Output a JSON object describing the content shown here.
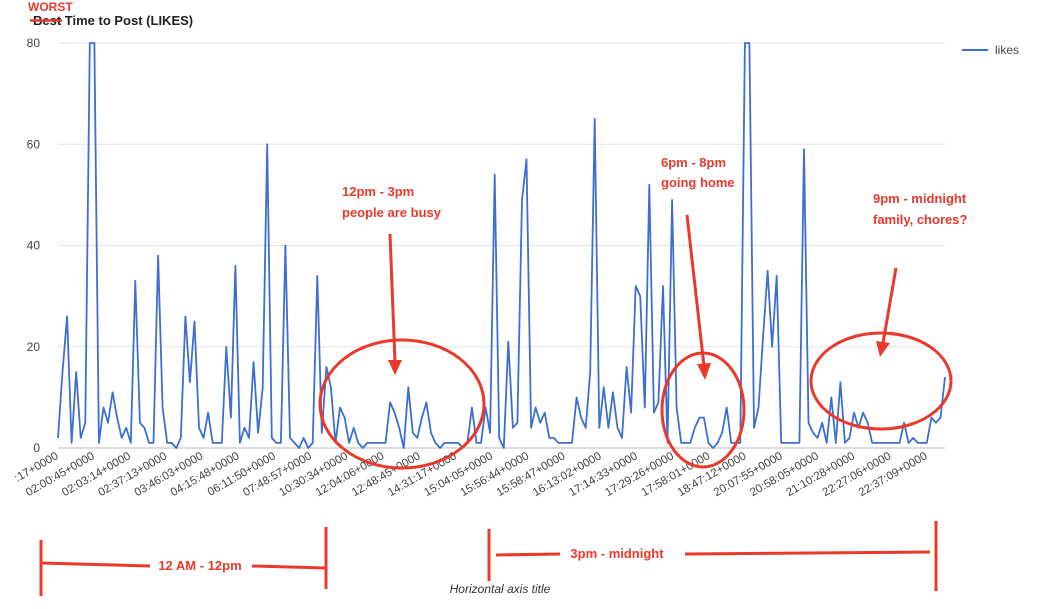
{
  "chart_data": {
    "type": "line",
    "title": "Best Time to Post (LIKES)",
    "xlabel": "Horizontal axis title",
    "ylabel": "",
    "ylim": [
      0,
      80
    ],
    "yticks": [
      0,
      20,
      40,
      60,
      80
    ],
    "grid": true,
    "legend": "right",
    "x_tick_labels": [
      ":17+0000",
      "02:00:45+0000",
      "02:03:14+0000",
      "02:37:13+0000",
      "03:46:03+0000",
      "04:15:48+0000",
      "06:11:50+0000",
      "07:48:57+0000",
      "10:30:34+0000",
      "12:04:06+0000",
      "12:48:45+0000",
      "14:31:17+0000",
      "15:04:05+0000",
      "15:56:44+0000",
      "15:58:47+0000",
      "16:13:02+0000",
      "17:14:33+0000",
      "17:29:26+0000",
      "17:58:01+0000",
      "18:47:12+0000",
      "20:07:55+0000",
      "20:58:05+0000",
      "21:10:28+0000",
      "22:27:06+0000",
      "22:37:09+0000"
    ],
    "series": [
      {
        "name": "likes",
        "color": "#3d6fd1",
        "values": [
          2,
          15,
          26,
          1,
          15,
          2,
          5,
          80,
          80,
          1,
          8,
          5,
          11,
          6,
          2,
          4,
          1,
          33,
          5,
          4,
          1,
          1,
          38,
          8,
          1,
          1,
          0,
          2,
          26,
          13,
          25,
          4,
          2,
          7,
          1,
          1,
          1,
          20,
          6,
          36,
          1,
          4,
          2,
          17,
          3,
          12,
          60,
          2,
          1,
          1,
          40,
          2,
          1,
          0,
          2,
          0,
          1,
          34,
          3,
          16,
          12,
          1,
          8,
          6,
          1,
          4,
          1,
          0,
          1,
          1,
          1,
          1,
          1,
          9,
          7,
          4,
          0,
          12,
          3,
          2,
          6,
          9,
          3,
          1,
          0,
          1,
          1,
          1,
          1,
          0,
          1,
          8,
          1,
          1,
          8,
          3,
          54,
          2,
          0,
          21,
          4,
          5,
          49,
          57,
          4,
          8,
          5,
          7,
          2,
          2,
          1,
          1,
          1,
          1,
          10,
          6,
          4,
          15,
          65,
          4,
          12,
          4,
          11,
          4,
          2,
          16,
          7,
          32,
          30,
          8,
          52,
          7,
          9,
          32,
          1,
          49,
          8,
          1,
          1,
          1,
          4,
          6,
          6,
          1,
          0,
          1,
          3,
          8,
          1,
          1,
          1,
          80,
          80,
          4,
          8,
          22,
          35,
          20,
          34,
          1,
          1,
          1,
          1,
          1,
          59,
          5,
          3,
          2,
          5,
          1,
          10,
          1,
          13,
          1,
          2,
          7,
          4,
          7,
          5,
          1,
          1,
          1,
          1,
          1,
          1,
          1,
          5,
          1,
          2,
          1,
          1,
          1,
          6,
          5,
          6,
          14
        ]
      }
    ]
  },
  "annotations": {
    "worst": "WORST",
    "busy_line1": "12pm - 3pm",
    "busy_line2": "people are busy",
    "home_line1": "6pm - 8pm",
    "home_line2": "going home",
    "night_line1": "9pm - midnight",
    "night_line2": "family, chores?",
    "range_am": "12 AM - 12pm",
    "range_pm": "3pm - midnight",
    "accent_color": "#e8392b"
  }
}
